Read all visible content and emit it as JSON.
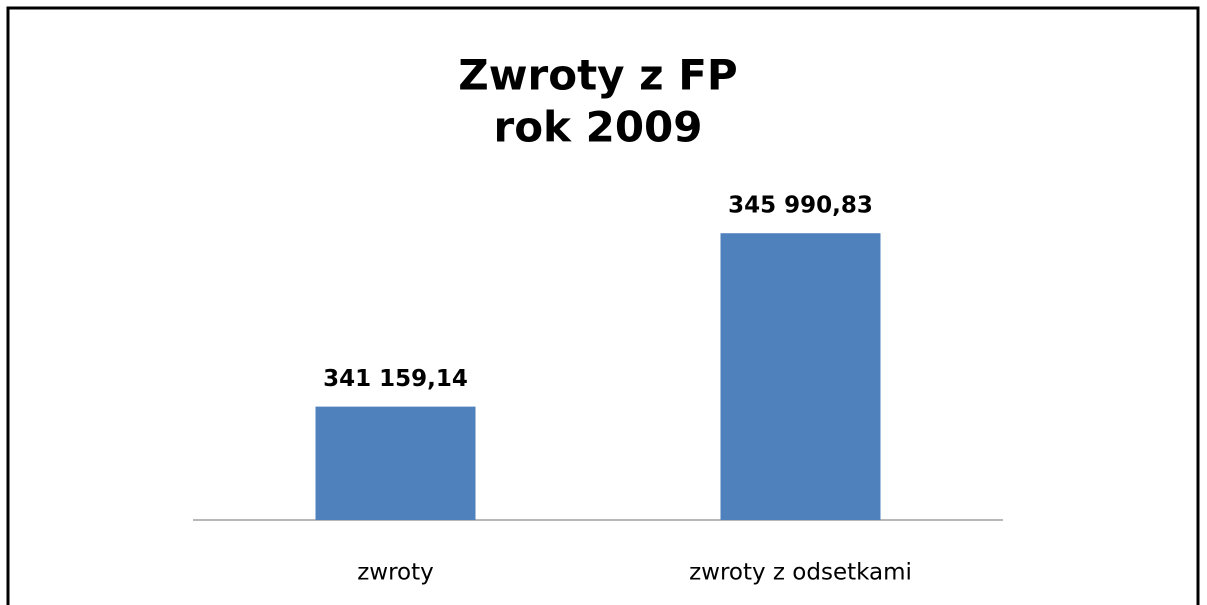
{
  "chart_data": {
    "type": "bar",
    "title": [
      "Zwroty z FP",
      "rok 2009"
    ],
    "categories": [
      "zwroty",
      "zwroty z odsetkami"
    ],
    "values": [
      341159.14,
      345990.83
    ],
    "value_labels": [
      "341 159,14",
      "345 990,83"
    ],
    "color": "#4f81bd",
    "ylim": [
      338000,
      347000
    ]
  }
}
